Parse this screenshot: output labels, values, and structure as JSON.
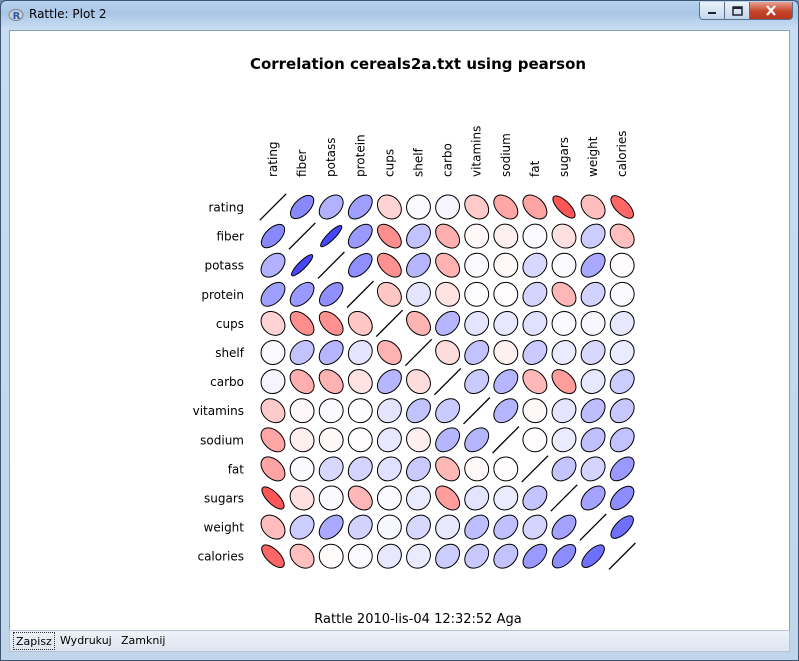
{
  "window": {
    "title": "Rattle: Plot 2"
  },
  "toolbar": {
    "save_label": "Zapisz",
    "print_label": "Wydrukuj",
    "close_label": "Zamknij"
  },
  "footer": {
    "text": "Rattle 2010-lis-04 12:32:52 Aga"
  },
  "colors": {
    "positive": "#3333ff",
    "negative": "#ff2222",
    "outline": "#000000"
  },
  "chart_data": {
    "type": "heatmap",
    "title": "Correlation  cereals2a.txt using pearson",
    "variables": [
      "rating",
      "fiber",
      "potass",
      "protein",
      "cups",
      "shelf",
      "carbo",
      "vitamins",
      "sodium",
      "fat",
      "sugars",
      "weight",
      "calories"
    ],
    "matrix": [
      [
        1.0,
        0.58,
        0.38,
        0.47,
        -0.2,
        0.02,
        0.05,
        -0.24,
        -0.4,
        -0.41,
        -0.76,
        -0.3,
        -0.69
      ],
      [
        0.58,
        1.0,
        0.9,
        0.5,
        -0.51,
        0.3,
        -0.36,
        -0.03,
        -0.07,
        0.02,
        -0.14,
        0.25,
        -0.29
      ],
      [
        0.38,
        0.9,
        1.0,
        0.55,
        -0.5,
        0.36,
        -0.35,
        0.02,
        -0.03,
        0.19,
        0.02,
        0.42,
        -0.02
      ],
      [
        0.47,
        0.5,
        0.55,
        1.0,
        -0.26,
        0.13,
        -0.13,
        0.01,
        -0.01,
        0.21,
        -0.33,
        0.22,
        0.02
      ],
      [
        -0.2,
        -0.51,
        -0.5,
        -0.26,
        1.0,
        -0.34,
        0.36,
        0.13,
        0.12,
        0.15,
        0.02,
        0.04,
        0.12
      ],
      [
        0.02,
        0.3,
        0.36,
        0.13,
        -0.34,
        1.0,
        -0.16,
        0.3,
        -0.07,
        0.26,
        0.1,
        0.19,
        0.1
      ],
      [
        0.05,
        -0.36,
        -0.35,
        -0.13,
        0.36,
        -0.16,
        1.0,
        0.26,
        0.36,
        -0.32,
        -0.45,
        0.12,
        0.25
      ],
      [
        -0.24,
        -0.03,
        0.02,
        0.01,
        0.13,
        0.3,
        0.26,
        1.0,
        0.36,
        -0.03,
        0.13,
        0.32,
        0.27
      ],
      [
        -0.4,
        -0.07,
        -0.03,
        -0.01,
        0.12,
        -0.07,
        0.36,
        0.36,
        1.0,
        -0.01,
        0.1,
        0.31,
        0.3
      ],
      [
        -0.41,
        0.02,
        0.19,
        0.21,
        0.15,
        0.26,
        -0.32,
        -0.03,
        -0.01,
        1.0,
        0.29,
        0.21,
        0.5
      ],
      [
        -0.76,
        -0.14,
        0.02,
        -0.33,
        0.02,
        0.1,
        -0.45,
        0.13,
        0.1,
        0.29,
        1.0,
        0.45,
        0.56
      ],
      [
        -0.3,
        0.25,
        0.42,
        0.22,
        0.04,
        0.19,
        0.12,
        0.32,
        0.31,
        0.21,
        0.45,
        1.0,
        0.7
      ],
      [
        -0.69,
        -0.29,
        -0.02,
        0.02,
        0.12,
        0.1,
        0.25,
        0.27,
        0.3,
        0.5,
        0.56,
        0.7,
        1.0
      ]
    ]
  }
}
